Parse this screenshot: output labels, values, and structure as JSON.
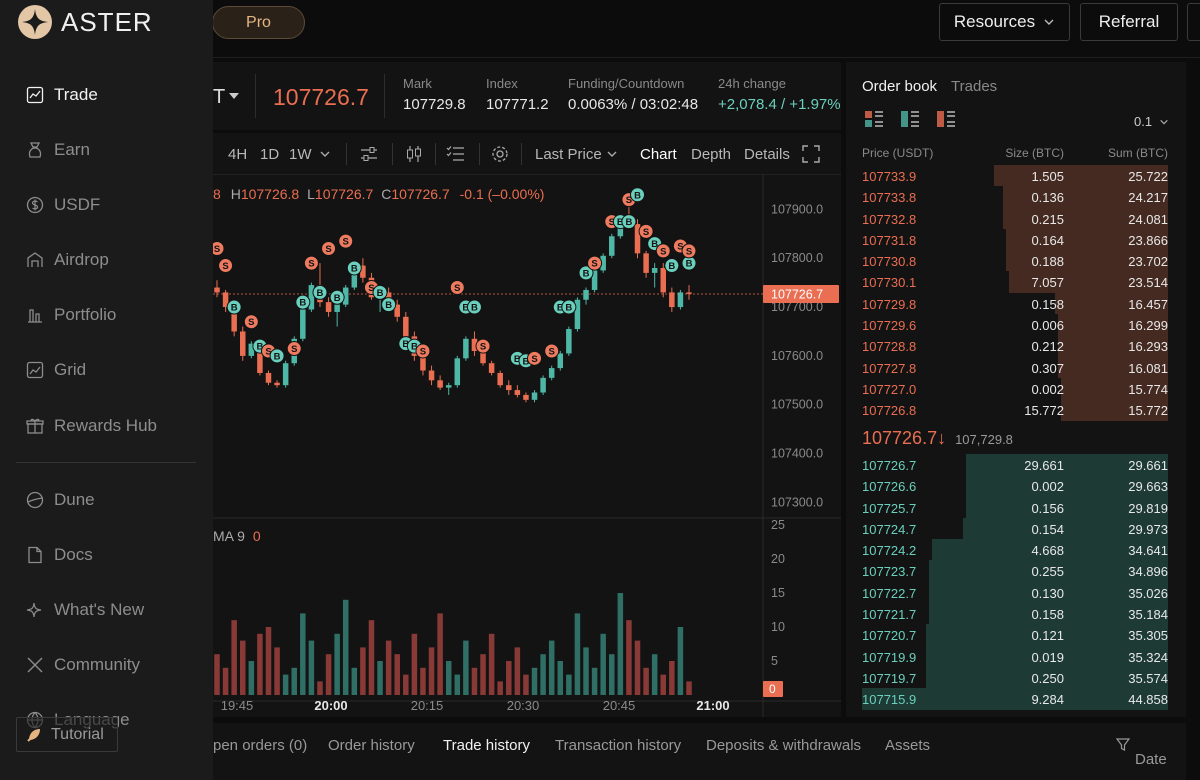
{
  "brand": {
    "name": "ASTER",
    "mode_button": "Pro"
  },
  "header": {
    "resources_label": "Resources",
    "referral_label": "Referral"
  },
  "sidebar": {
    "items": [
      {
        "label": "Trade",
        "icon": "chart-line-icon",
        "active": true
      },
      {
        "label": "Earn",
        "icon": "earn-icon"
      },
      {
        "label": "USDF",
        "icon": "dollar-circle-icon"
      },
      {
        "label": "Airdrop",
        "icon": "airdrop-icon"
      },
      {
        "label": "Portfolio",
        "icon": "portfolio-icon"
      },
      {
        "label": "Grid",
        "icon": "grid-chart-icon"
      },
      {
        "label": "Rewards Hub",
        "icon": "gift-icon"
      }
    ],
    "secondary": [
      {
        "label": "Dune",
        "icon": "dune-icon"
      },
      {
        "label": "Docs",
        "icon": "document-icon"
      },
      {
        "label": "What's New",
        "icon": "sparkle-icon"
      },
      {
        "label": "Community",
        "icon": "x-logo-icon"
      },
      {
        "label": "Language",
        "icon": "globe-icon"
      }
    ],
    "tutorial_label": "Tutorial"
  },
  "ticker": {
    "symbol_fragment": "T",
    "last_price": "107726.7",
    "stats": [
      {
        "label": "Mark",
        "value": "107729.8"
      },
      {
        "label": "Index",
        "value": "107771.2"
      },
      {
        "label": "Funding/Countdown",
        "value": "0.0063% / 03:02:48"
      },
      {
        "label": "24h change",
        "value": "+2,078.4 / +1.97%"
      }
    ]
  },
  "chart_toolbar": {
    "intervals": [
      "4H",
      "1D",
      "1W"
    ],
    "price_source": "Last Price",
    "views": [
      "Chart",
      "Depth",
      "Details"
    ],
    "active_view": "Chart"
  },
  "ohlc": {
    "o_fragment": "8",
    "h": "H107726.8",
    "l": "L107726.7",
    "c": "C107726.7",
    "change": "-0.1 (–0.00%)"
  },
  "volume_label": {
    "name": "MA 9",
    "value": "0"
  },
  "chart_data": {
    "type": "candlestick",
    "price_axis": {
      "ticks": [
        "107900.0",
        "107800.0",
        "107700.0",
        "107600.0",
        "107500.0",
        "107400.0",
        "107300.0"
      ],
      "range": [
        107270,
        107950
      ],
      "current": "107726.7"
    },
    "volume_axis": {
      "ticks": [
        "25",
        "20",
        "15",
        "10",
        "5"
      ],
      "range": [
        0,
        25
      ],
      "current": "0"
    },
    "time_axis": [
      "19:45",
      "20:00",
      "20:15",
      "20:30",
      "20:45",
      "21:00"
    ],
    "candles": [
      [
        107740,
        107755,
        107720,
        107730
      ],
      [
        107730,
        107735,
        107690,
        107700
      ],
      [
        107700,
        107705,
        107640,
        107650
      ],
      [
        107650,
        107660,
        107590,
        107600
      ],
      [
        107600,
        107630,
        107595,
        107625
      ],
      [
        107625,
        107628,
        107560,
        107565
      ],
      [
        107565,
        107570,
        107540,
        107545
      ],
      [
        107545,
        107550,
        107535,
        107540
      ],
      [
        107540,
        107590,
        107535,
        107585
      ],
      [
        107585,
        107640,
        107580,
        107635
      ],
      [
        107635,
        107700,
        107630,
        107695
      ],
      [
        107695,
        107750,
        107690,
        107745
      ],
      [
        107745,
        107790,
        107700,
        107710
      ],
      [
        107710,
        107720,
        107680,
        107690
      ],
      [
        107690,
        107710,
        107660,
        107705
      ],
      [
        107705,
        107745,
        107700,
        107740
      ],
      [
        107740,
        107790,
        107735,
        107785
      ],
      [
        107785,
        107800,
        107750,
        107760
      ],
      [
        107760,
        107770,
        107715,
        107720
      ],
      [
        107720,
        107735,
        107690,
        107730
      ],
      [
        107730,
        107740,
        107700,
        107705
      ],
      [
        107705,
        107715,
        107670,
        107680
      ],
      [
        107680,
        107690,
        107630,
        107640
      ],
      [
        107640,
        107650,
        107590,
        107600
      ],
      [
        107600,
        107610,
        107560,
        107570
      ],
      [
        107570,
        107580,
        107540,
        107550
      ],
      [
        107550,
        107560,
        107530,
        107535
      ],
      [
        107535,
        107545,
        107520,
        107540
      ],
      [
        107540,
        107600,
        107535,
        107595
      ],
      [
        107595,
        107640,
        107590,
        107635
      ],
      [
        107635,
        107650,
        107600,
        107610
      ],
      [
        107610,
        107620,
        107580,
        107585
      ],
      [
        107585,
        107590,
        107560,
        107565
      ],
      [
        107565,
        107570,
        107535,
        107540
      ],
      [
        107540,
        107550,
        107520,
        107530
      ],
      [
        107530,
        107540,
        107515,
        107520
      ],
      [
        107520,
        107525,
        107505,
        107510
      ],
      [
        107510,
        107530,
        107505,
        107525
      ],
      [
        107525,
        107560,
        107520,
        107555
      ],
      [
        107555,
        107580,
        107550,
        107575
      ],
      [
        107575,
        107610,
        107570,
        107605
      ],
      [
        107605,
        107660,
        107600,
        107655
      ],
      [
        107655,
        107720,
        107650,
        107715
      ],
      [
        107715,
        107740,
        107705,
        107735
      ],
      [
        107735,
        107780,
        107730,
        107775
      ],
      [
        107775,
        107810,
        107770,
        107805
      ],
      [
        107805,
        107850,
        107800,
        107845
      ],
      [
        107845,
        107890,
        107840,
        107880
      ],
      [
        107880,
        107905,
        107860,
        107870
      ],
      [
        107870,
        107880,
        107800,
        107810
      ],
      [
        107810,
        107815,
        107760,
        107770
      ],
      [
        107770,
        107790,
        107740,
        107780
      ],
      [
        107780,
        107790,
        107720,
        107730
      ],
      [
        107730,
        107740,
        107690,
        107700
      ],
      [
        107700,
        107735,
        107695,
        107730
      ],
      [
        107730,
        107745,
        107715,
        107727
      ]
    ],
    "volumes": [
      6,
      4,
      11,
      8,
      5,
      9,
      10,
      7,
      3,
      4,
      12,
      8,
      2,
      6,
      9,
      14,
      4,
      7,
      11,
      5,
      8,
      6,
      3,
      9,
      4,
      7,
      12,
      5,
      3,
      8,
      4,
      6,
      9,
      2,
      5,
      7,
      3,
      4,
      6,
      8,
      5,
      3,
      12,
      7,
      4,
      9,
      6,
      15,
      11,
      8,
      4,
      6,
      3,
      5,
      10,
      2
    ],
    "trade_markers": [
      {
        "i": 0,
        "side": "S",
        "price": 107820
      },
      {
        "i": 1,
        "side": "S",
        "price": 107785
      },
      {
        "i": 2,
        "side": "B",
        "price": 107700
      },
      {
        "i": 4,
        "side": "S",
        "price": 107670
      },
      {
        "i": 5,
        "side": "B",
        "price": 107620
      },
      {
        "i": 6,
        "side": "S",
        "price": 107610
      },
      {
        "i": 7,
        "side": "B",
        "price": 107600
      },
      {
        "i": 9,
        "side": "S",
        "price": 107615
      },
      {
        "i": 10,
        "side": "B",
        "price": 107710
      },
      {
        "i": 11,
        "side": "S",
        "price": 107790
      },
      {
        "i": 12,
        "side": "B",
        "price": 107730
      },
      {
        "i": 13,
        "side": "S",
        "price": 107820
      },
      {
        "i": 14,
        "side": "B",
        "price": 107720
      },
      {
        "i": 15,
        "side": "S",
        "price": 107835
      },
      {
        "i": 16,
        "side": "B",
        "price": 107780
      },
      {
        "i": 18,
        "side": "S",
        "price": 107740
      },
      {
        "i": 19,
        "side": "B",
        "price": 107730
      },
      {
        "i": 20,
        "side": "B",
        "price": 107705
      },
      {
        "i": 22,
        "side": "B",
        "price": 107625
      },
      {
        "i": 23,
        "side": "B",
        "price": 107620
      },
      {
        "i": 24,
        "side": "S",
        "price": 107610
      },
      {
        "i": 28,
        "side": "S",
        "price": 107740
      },
      {
        "i": 29,
        "side": "B",
        "price": 107700
      },
      {
        "i": 30,
        "side": "B",
        "price": 107700
      },
      {
        "i": 31,
        "side": "S",
        "price": 107620
      },
      {
        "i": 35,
        "side": "B",
        "price": 107595
      },
      {
        "i": 36,
        "side": "B",
        "price": 107590
      },
      {
        "i": 37,
        "side": "S",
        "price": 107595
      },
      {
        "i": 39,
        "side": "S",
        "price": 107610
      },
      {
        "i": 40,
        "side": "B",
        "price": 107700
      },
      {
        "i": 41,
        "side": "B",
        "price": 107700
      },
      {
        "i": 43,
        "side": "B",
        "price": 107770
      },
      {
        "i": 44,
        "side": "S",
        "price": 107790
      },
      {
        "i": 46,
        "side": "S",
        "price": 107875
      },
      {
        "i": 47,
        "side": "B",
        "price": 107875
      },
      {
        "i": 48,
        "side": "B",
        "price": 107875
      },
      {
        "i": 48,
        "side": "S",
        "price": 107920
      },
      {
        "i": 49,
        "side": "B",
        "price": 107930
      },
      {
        "i": 50,
        "side": "S",
        "price": 107855
      },
      {
        "i": 51,
        "side": "B",
        "price": 107830
      },
      {
        "i": 52,
        "side": "S",
        "price": 107815
      },
      {
        "i": 53,
        "side": "B",
        "price": 107785
      },
      {
        "i": 54,
        "side": "S",
        "price": 107825
      },
      {
        "i": 55,
        "side": "B",
        "price": 107790
      },
      {
        "i": 55,
        "side": "S",
        "price": 107815
      }
    ]
  },
  "order_book": {
    "tabs": [
      "Order book",
      "Trades"
    ],
    "step": "0.1",
    "headers": {
      "price": "Price (USDT)",
      "size": "Size (BTC)",
      "sum": "Sum (BTC)"
    },
    "asks": [
      {
        "price": "107733.9",
        "size": "1.505",
        "sum": "25.722",
        "depth": 0.57
      },
      {
        "price": "107733.8",
        "size": "0.136",
        "sum": "24.217",
        "depth": 0.54
      },
      {
        "price": "107732.8",
        "size": "0.215",
        "sum": "24.081",
        "depth": 0.54
      },
      {
        "price": "107731.8",
        "size": "0.164",
        "sum": "23.866",
        "depth": 0.53
      },
      {
        "price": "107730.8",
        "size": "0.188",
        "sum": "23.702",
        "depth": 0.53
      },
      {
        "price": "107730.1",
        "size": "7.057",
        "sum": "23.514",
        "depth": 0.52
      },
      {
        "price": "107729.8",
        "size": "0.158",
        "sum": "16.457",
        "depth": 0.37
      },
      {
        "price": "107729.6",
        "size": "0.006",
        "sum": "16.299",
        "depth": 0.36
      },
      {
        "price": "107728.8",
        "size": "0.212",
        "sum": "16.293",
        "depth": 0.36
      },
      {
        "price": "107727.8",
        "size": "0.307",
        "sum": "16.081",
        "depth": 0.36
      },
      {
        "price": "107727.0",
        "size": "0.002",
        "sum": "15.774",
        "depth": 0.35
      },
      {
        "price": "107726.8",
        "size": "15.772",
        "sum": "15.772",
        "depth": 0.35
      }
    ],
    "mid": {
      "last_price": "107726.7",
      "arrow": "↓",
      "mark": "107,729.8"
    },
    "bids": [
      {
        "price": "107726.7",
        "size": "29.661",
        "sum": "29.661",
        "depth": 0.66
      },
      {
        "price": "107726.6",
        "size": "0.002",
        "sum": "29.663",
        "depth": 0.66
      },
      {
        "price": "107725.7",
        "size": "0.156",
        "sum": "29.819",
        "depth": 0.66
      },
      {
        "price": "107724.7",
        "size": "0.154",
        "sum": "29.973",
        "depth": 0.67
      },
      {
        "price": "107724.2",
        "size": "4.668",
        "sum": "34.641",
        "depth": 0.77
      },
      {
        "price": "107723.7",
        "size": "0.255",
        "sum": "34.896",
        "depth": 0.78
      },
      {
        "price": "107722.7",
        "size": "0.130",
        "sum": "35.026",
        "depth": 0.78
      },
      {
        "price": "107721.7",
        "size": "0.158",
        "sum": "35.184",
        "depth": 0.78
      },
      {
        "price": "107720.7",
        "size": "0.121",
        "sum": "35.305",
        "depth": 0.79
      },
      {
        "price": "107719.9",
        "size": "0.019",
        "sum": "35.324",
        "depth": 0.79
      },
      {
        "price": "107719.7",
        "size": "0.250",
        "sum": "35.574",
        "depth": 0.79
      },
      {
        "price": "107715.9",
        "size": "9.284",
        "sum": "44.858",
        "depth": 1.0
      }
    ]
  },
  "bottom_tabs": {
    "items": [
      "pen orders (0)",
      "Order history",
      "Trade history",
      "Transaction history",
      "Deposits & withdrawals",
      "Assets"
    ],
    "active": "Trade history",
    "filter_label": "Date"
  },
  "colors": {
    "up": "#4fb7a5",
    "down": "#ea6e51",
    "accent": "#e4b483"
  }
}
